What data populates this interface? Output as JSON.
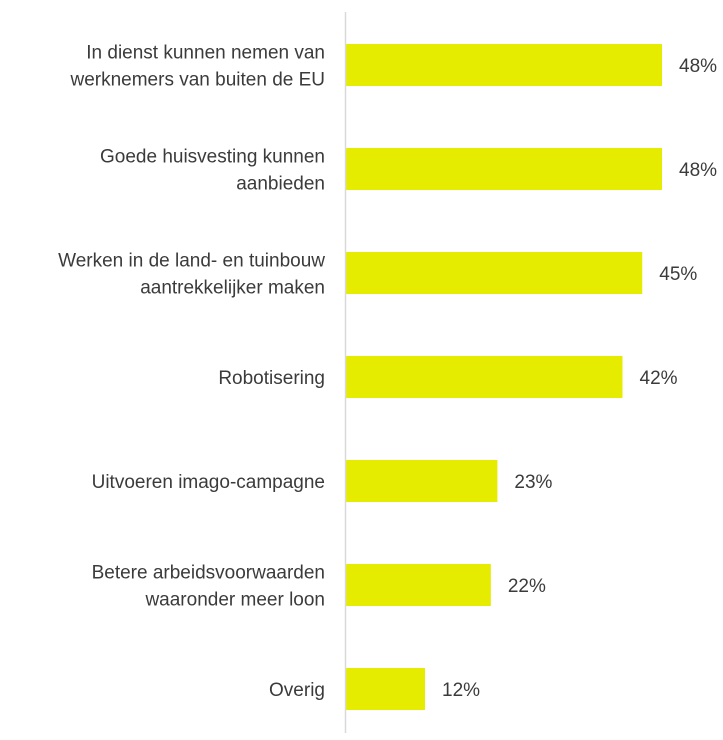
{
  "chart_data": {
    "type": "bar",
    "orientation": "horizontal",
    "title": "",
    "xlabel": "",
    "ylabel": "",
    "categories": [
      [
        "In dienst kunnen nemen van",
        "werknemers van buiten de EU"
      ],
      [
        "Goede huisvesting kunnen",
        "aanbieden"
      ],
      [
        "Werken in de land- en tuinbouw",
        "aantrekkelijker maken"
      ],
      [
        "Robotisering"
      ],
      [
        "Uitvoeren imago-campagne"
      ],
      [
        "Betere arbeidsvoorwaarden",
        "waaronder meer loon"
      ],
      [
        "Overig"
      ]
    ],
    "values": [
      48,
      48,
      45,
      42,
      23,
      22,
      12
    ],
    "value_labels": [
      "48%",
      "48%",
      "45%",
      "42%",
      "23%",
      "22%",
      "12%"
    ],
    "xlim": [
      0,
      100
    ],
    "grid": false,
    "legend": "none",
    "colors": {
      "bar": "#e5ec00",
      "axis": "#d9d9d9",
      "text": "#3b3b3b"
    }
  }
}
